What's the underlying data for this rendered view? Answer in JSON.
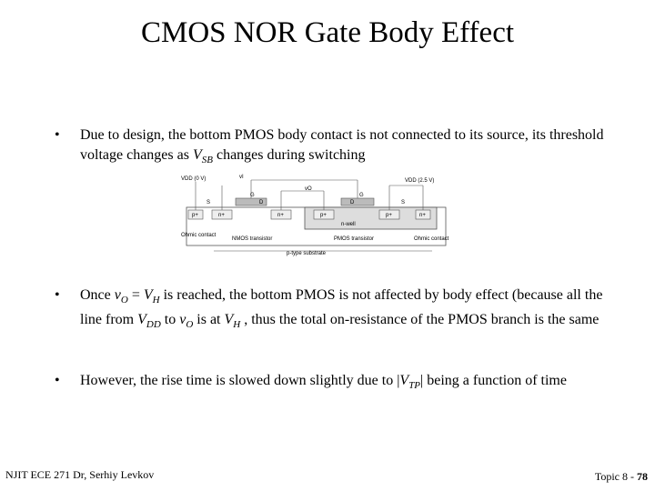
{
  "header": {
    "title": "CMOS NOR Gate Body Effect"
  },
  "bullets": [
    {
      "runs": [
        {
          "text": "Due to design, the bottom PMOS body contact is not connected to its source, its threshold voltage changes as "
        },
        {
          "text": "V",
          "sub": "SB"
        },
        {
          "text": " changes during switching"
        }
      ]
    },
    {
      "runs": [
        {
          "text": "Once "
        },
        {
          "text": "v",
          "sub": "O"
        },
        {
          "text": " = "
        },
        {
          "text": "V",
          "sub": "H"
        },
        {
          "text": " is reached, the bottom PMOS is not affected by body effect (because all the line from "
        },
        {
          "text": "V",
          "sub": "DD"
        },
        {
          "text": " to "
        },
        {
          "text": "v",
          "sub": "O"
        },
        {
          "text": " is at "
        },
        {
          "text": "V",
          "sub": "H"
        },
        {
          "text": " , thus the total on-resistance of the PMOS branch is the same"
        }
      ]
    },
    {
      "runs": [
        {
          "text": "However, the rise time is slowed down slightly due to |"
        },
        {
          "text": "V",
          "sub": "TP"
        },
        {
          "text": "| being a function of time"
        }
      ]
    }
  ],
  "diagram": {
    "labels": [
      "VDD (0 V)",
      "vI",
      "vO",
      "VDD (2.5 V)",
      "G",
      "S",
      "D",
      "D",
      "S",
      "G",
      "p+",
      "n+",
      "n+",
      "p+",
      "p+",
      "n+",
      "n-well",
      "Ohmic contact",
      "NMOS transistor",
      "PMOS transistor",
      "Ohmic contact",
      "p-type substrate"
    ]
  },
  "footer": {
    "left": "NJIT ECE 271  Dr, Serhiy Levkov",
    "right": "Topic 8 - ",
    "page": "78"
  }
}
